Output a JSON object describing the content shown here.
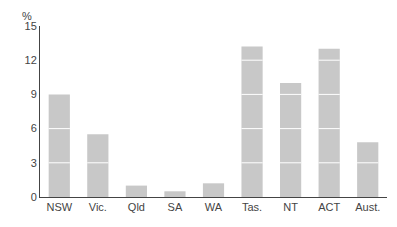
{
  "chart_data": {
    "type": "bar",
    "categories": [
      "NSW",
      "Vic.",
      "Qld",
      "SA",
      "WA",
      "Tas.",
      "NT",
      "ACT",
      "Aust."
    ],
    "values": [
      9.0,
      5.5,
      1.0,
      0.5,
      1.2,
      13.2,
      10.0,
      13.0,
      4.8
    ],
    "color": "#c8c8c8",
    "ylabel": "%",
    "ylim": [
      0,
      15
    ],
    "yticks": [
      0,
      3,
      6,
      9,
      12,
      15
    ],
    "grid": false
  }
}
